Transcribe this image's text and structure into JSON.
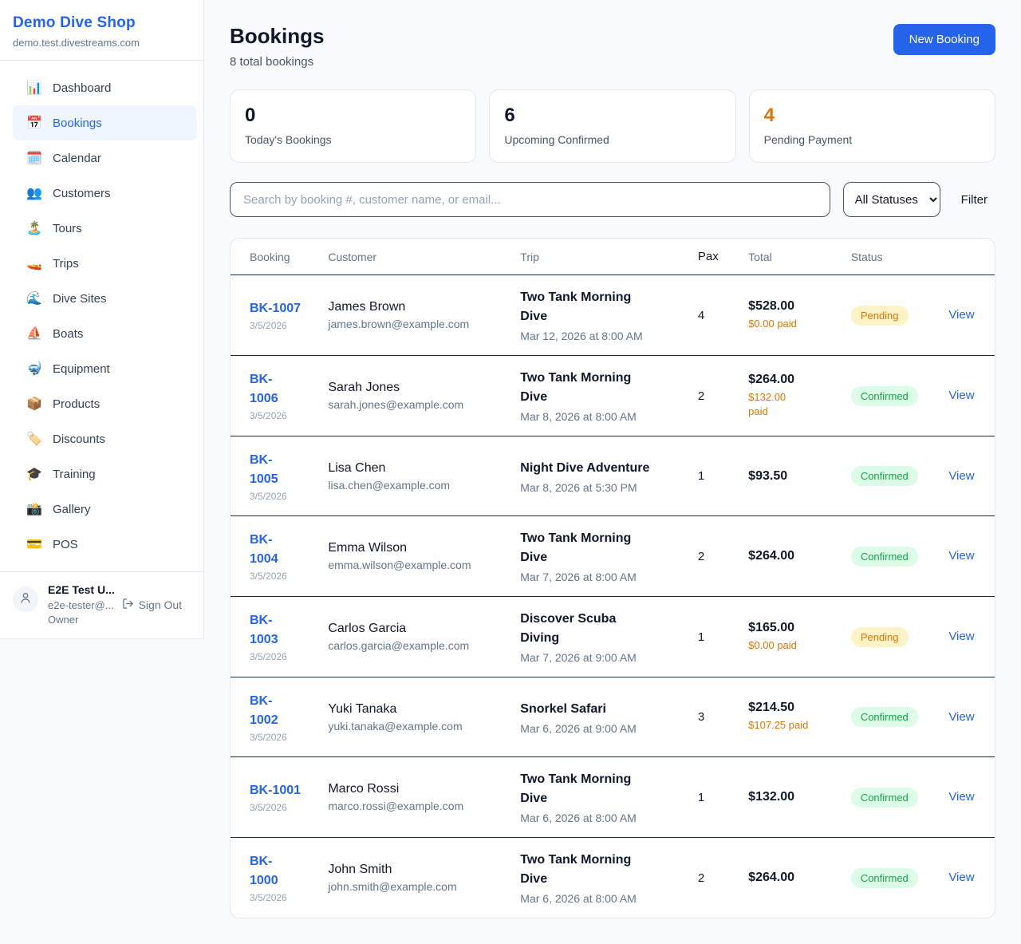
{
  "sidebar": {
    "shop_name": "Demo Dive Shop",
    "domain": "demo.test.divestreams.com",
    "items": [
      {
        "icon": "📊",
        "label": "Dashboard",
        "active": false
      },
      {
        "icon": "📅",
        "label": "Bookings",
        "active": true
      },
      {
        "icon": "🗓️",
        "label": "Calendar",
        "active": false
      },
      {
        "icon": "👥",
        "label": "Customers",
        "active": false
      },
      {
        "icon": "🏝️",
        "label": "Tours",
        "active": false
      },
      {
        "icon": "🚤",
        "label": "Trips",
        "active": false
      },
      {
        "icon": "🌊",
        "label": "Dive Sites",
        "active": false
      },
      {
        "icon": "⛵",
        "label": "Boats",
        "active": false
      },
      {
        "icon": "🤿",
        "label": "Equipment",
        "active": false
      },
      {
        "icon": "📦",
        "label": "Products",
        "active": false
      },
      {
        "icon": "🏷️",
        "label": "Discounts",
        "active": false
      },
      {
        "icon": "🎓",
        "label": "Training",
        "active": false
      },
      {
        "icon": "📸",
        "label": "Gallery",
        "active": false
      },
      {
        "icon": "💳",
        "label": "POS",
        "active": false
      }
    ],
    "user": {
      "name": "E2E Test U...",
      "email": "e2e-tester@...",
      "role": "Owner",
      "sign_out_label": "Sign Out"
    }
  },
  "header": {
    "title": "Bookings",
    "subtitle": "8 total bookings",
    "new_booking_label": "New Booking"
  },
  "stats": [
    {
      "value": "0",
      "label": "Today's Bookings",
      "value_color": "#0f172a"
    },
    {
      "value": "6",
      "label": "Upcoming Confirmed",
      "value_color": "#0f172a"
    },
    {
      "value": "4",
      "label": "Pending Payment",
      "value_color": "#d97706"
    }
  ],
  "filters": {
    "search_placeholder": "Search by booking #, customer name, or email...",
    "status_selected": "All Statuses",
    "filter_label": "Filter"
  },
  "table": {
    "columns": [
      "Booking",
      "Customer",
      "Trip",
      "Pax",
      "Total",
      "Status"
    ],
    "view_label": "View",
    "rows": [
      {
        "number_lines": [
          "BK-1007"
        ],
        "date": "3/5/2026",
        "customer": "James Brown",
        "email": "james.brown@example.com",
        "trip_lines": [
          "Two Tank Morning",
          "Dive"
        ],
        "trip_datetime": "Mar 12, 2026 at 8:00 AM",
        "pax": "4",
        "total": "$528.00",
        "paid_lines": [
          "$0.00 paid"
        ],
        "status": "Pending"
      },
      {
        "number_lines": [
          "BK-",
          "1006"
        ],
        "date": "3/5/2026",
        "customer": "Sarah Jones",
        "email": "sarah.jones@example.com",
        "trip_lines": [
          "Two Tank Morning",
          "Dive"
        ],
        "trip_datetime": "Mar 8, 2026 at 8:00 AM",
        "pax": "2",
        "total": "$264.00",
        "paid_lines": [
          "$132.00",
          "paid"
        ],
        "status": "Confirmed"
      },
      {
        "number_lines": [
          "BK-",
          "1005"
        ],
        "date": "3/5/2026",
        "customer": "Lisa Chen",
        "email": "lisa.chen@example.com",
        "trip_lines": [
          "Night Dive Adventure"
        ],
        "trip_datetime": "Mar 8, 2026 at 5:30 PM",
        "pax": "1",
        "total": "$93.50",
        "paid_lines": null,
        "status": "Confirmed"
      },
      {
        "number_lines": [
          "BK-",
          "1004"
        ],
        "date": "3/5/2026",
        "customer": "Emma Wilson",
        "email": "emma.wilson@example.com",
        "trip_lines": [
          "Two Tank Morning",
          "Dive"
        ],
        "trip_datetime": "Mar 7, 2026 at 8:00 AM",
        "pax": "2",
        "total": "$264.00",
        "paid_lines": null,
        "status": "Confirmed"
      },
      {
        "number_lines": [
          "BK-",
          "1003"
        ],
        "date": "3/5/2026",
        "customer": "Carlos Garcia",
        "email": "carlos.garcia@example.com",
        "trip_lines": [
          "Discover Scuba",
          "Diving"
        ],
        "trip_datetime": "Mar 7, 2026 at 9:00 AM",
        "pax": "1",
        "total": "$165.00",
        "paid_lines": [
          "$0.00 paid"
        ],
        "status": "Pending"
      },
      {
        "number_lines": [
          "BK-",
          "1002"
        ],
        "date": "3/5/2026",
        "customer": "Yuki Tanaka",
        "email": "yuki.tanaka@example.com",
        "trip_lines": [
          "Snorkel Safari"
        ],
        "trip_datetime": "Mar 6, 2026 at 9:00 AM",
        "pax": "3",
        "total": "$214.50",
        "paid_lines": [
          "$107.25 paid"
        ],
        "status": "Confirmed"
      },
      {
        "number_lines": [
          "BK-1001"
        ],
        "date": "3/5/2026",
        "customer": "Marco Rossi",
        "email": "marco.rossi@example.com",
        "trip_lines": [
          "Two Tank Morning",
          "Dive"
        ],
        "trip_datetime": "Mar 6, 2026 at 8:00 AM",
        "pax": "1",
        "total": "$132.00",
        "paid_lines": null,
        "status": "Confirmed"
      },
      {
        "number_lines": [
          "BK-",
          "1000"
        ],
        "date": "3/5/2026",
        "customer": "John Smith",
        "email": "john.smith@example.com",
        "trip_lines": [
          "Two Tank Morning",
          "Dive"
        ],
        "trip_datetime": "Mar 6, 2026 at 8:00 AM",
        "pax": "2",
        "total": "$264.00",
        "paid_lines": null,
        "status": "Confirmed"
      }
    ]
  },
  "colors": {
    "brand_blue": "#2563eb",
    "pending_text": "#d97706",
    "pending_bg": "#fef3c7",
    "confirmed_text": "#16a34a",
    "confirmed_bg": "#dcfce7"
  }
}
